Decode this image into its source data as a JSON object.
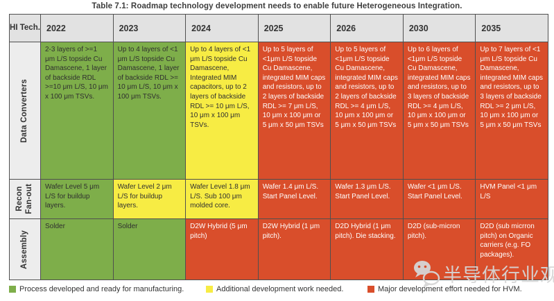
{
  "title": "Table 7.1: Roadmap technology development needs to enable future Heterogeneous Integration.",
  "table": {
    "corner_label": "HI Tech.",
    "years": [
      "2022",
      "2023",
      "2024",
      "2025",
      "2026",
      "2030",
      "2035"
    ],
    "rows": [
      {
        "label": "Data Converters",
        "cells": [
          {
            "status": "green",
            "text": "2-3 layers of >=1 μm L/S topside Cu Damascene, 1 layer of backside RDL >=10 μm L/S, 10 μm x 100 μm TSVs."
          },
          {
            "status": "green",
            "text": "Up to 4 layers of <1 μm L/S topside Cu Damascene, 1 layer of backside RDL >= 10 μm L/S, 10 μm x 100 μm TSVs."
          },
          {
            "status": "yellow",
            "text": "Up to 4 layers of <1 μm L/S topside Cu Damascene, Integrated MIM capacitors,  up to 2 layers of backside RDL >= 10 μm L/S, 10 μm x 100 μm TSVs."
          },
          {
            "status": "red",
            "text": "Up to 5 layers of <1μm L/S topside Cu Damascene, integrated MIM caps and resistors, up to 2 layers of backside RDL >= 7 μm L/S, 10 μm x 100 μm or 5 μm x 50 μm TSVs"
          },
          {
            "status": "red",
            "text": "Up to 5 layers of <1μm L/S topside Cu Damascene, integrated MIM caps and resistors, up to 2 layers of backside RDL >= 4 μm L/S, 10 μm x 100 μm or 5 μm x 50 μm TSVs"
          },
          {
            "status": "red",
            "text": "Up to 6 layers of <1μm L/S topside Cu Damascene, integrated MIM caps and resistors, up to 3 layers of backside RDL >= 4 μm L/S, 10 μm x 100 μm or 5 μm x 50 μm TSVs"
          },
          {
            "status": "red",
            "text": "Up to 7 layers of <1 μm L/S topside Cu Damascene, integrated MIM caps and resistors, up to 3 layers of backside RDL >= 2 μm L/S, 10 μm x 100 μm or 5 μm x 50 μm TSVs"
          }
        ]
      },
      {
        "label": "Recon\nFan-out",
        "cells": [
          {
            "status": "green",
            "text": "Wafer Level 5 μm L/S for buildup layers."
          },
          {
            "status": "yellow",
            "text": "Wafer Level 2 μm L/S for buildup layers."
          },
          {
            "status": "yellow",
            "text": "Wafer Level 1.8 μm L/S. Sub 100 μm molded core."
          },
          {
            "status": "red",
            "text": "Wafer 1.4 μm L/S. Start Panel Level."
          },
          {
            "status": "red",
            "text": "Wafer 1.3 μm L/S. Start Panel Level."
          },
          {
            "status": "red",
            "text": "Wafer <1 μm L/S. Start Panel Level."
          },
          {
            "status": "red",
            "text": "HVM Panel <1 μm L/S"
          }
        ]
      },
      {
        "label": "Assembly",
        "cells": [
          {
            "status": "green",
            "text": "Solder"
          },
          {
            "status": "green",
            "text": "Solder"
          },
          {
            "status": "red",
            "text": "D2W Hybrid (5 μm pitch)"
          },
          {
            "status": "red",
            "text": "D2W Hybrid (1 μm pitch)."
          },
          {
            "status": "red",
            "text": "D2D Hybrid (1 μm pitch). Die stacking."
          },
          {
            "status": "red",
            "text": "D2D (sub-micron pitch)."
          },
          {
            "status": "red",
            "text": "D2D (sub micrron pitch) on Organic carriers (e.g. FO packages)."
          }
        ]
      }
    ]
  },
  "legend": [
    {
      "status": "green",
      "color": "#7eae4a",
      "label": "Process developed and ready for manufacturing."
    },
    {
      "status": "yellow",
      "color": "#f7ec44",
      "label": "Additional development work needed."
    },
    {
      "status": "red",
      "color": "#d94e2b",
      "label": "Major development effort needed for HVM."
    }
  ],
  "colors": {
    "green": "#7eae4a",
    "yellow": "#f7ec44",
    "red": "#d94e2b"
  },
  "watermark": {
    "icon": "wechat-icon",
    "text": "半导体行业观察"
  }
}
